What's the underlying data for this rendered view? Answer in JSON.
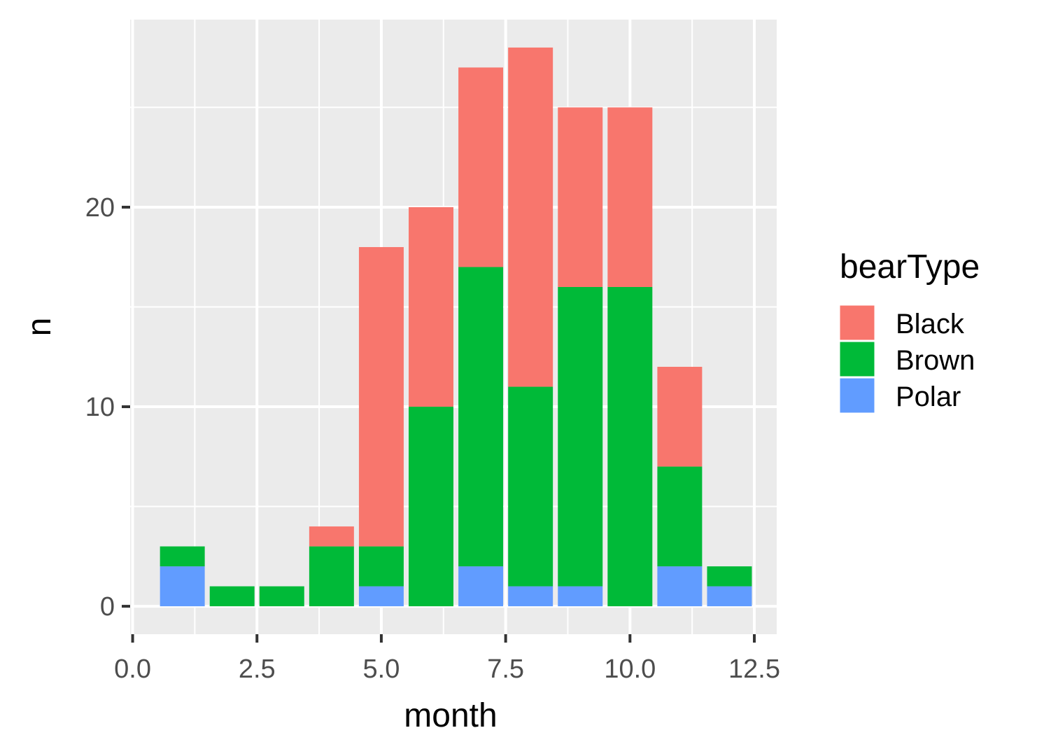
{
  "chart_data": {
    "type": "bar",
    "stacked": true,
    "xlabel": "month",
    "ylabel": "n",
    "xlim": [
      -0.05,
      12.95
    ],
    "ylim": [
      -1.4,
      29.4
    ],
    "x_ticks": [
      {
        "value": 0,
        "label": "0.0"
      },
      {
        "value": 2.5,
        "label": "2.5"
      },
      {
        "value": 5,
        "label": "5.0"
      },
      {
        "value": 7.5,
        "label": "7.5"
      },
      {
        "value": 10,
        "label": "10.0"
      },
      {
        "value": 12.5,
        "label": "12.5"
      }
    ],
    "y_ticks": [
      {
        "value": 0,
        "label": "0"
      },
      {
        "value": 10,
        "label": "10"
      },
      {
        "value": 20,
        "label": "20"
      }
    ],
    "bar_width": 0.9,
    "x": [
      1,
      2,
      3,
      4,
      5,
      6,
      7,
      8,
      9,
      10,
      11,
      12
    ],
    "series": [
      {
        "name": "Polar",
        "color": "#619CFF",
        "values": [
          2,
          0,
          0,
          0,
          1,
          0,
          2,
          1,
          1,
          0,
          2,
          1
        ]
      },
      {
        "name": "Brown",
        "color": "#00BA38",
        "values": [
          1,
          1,
          1,
          3,
          2,
          10,
          15,
          10,
          15,
          16,
          5,
          1
        ]
      },
      {
        "name": "Black",
        "color": "#F8766D",
        "values": [
          0,
          0,
          0,
          1,
          15,
          10,
          10,
          17,
          9,
          9,
          5,
          0
        ]
      }
    ],
    "legend": {
      "title": "bearType",
      "position": "right",
      "entries": [
        {
          "label": "Black",
          "color": "#F8766D"
        },
        {
          "label": "Brown",
          "color": "#00BA38"
        },
        {
          "label": "Polar",
          "color": "#619CFF"
        }
      ]
    },
    "grid": true,
    "panel_background": "#EBEBEB",
    "grid_color": "#FFFFFF"
  }
}
